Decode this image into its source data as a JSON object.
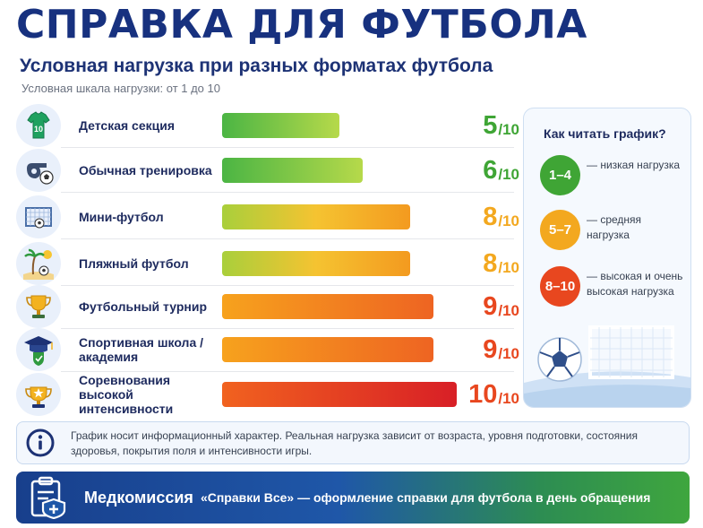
{
  "header": {
    "title": "СПРАВКА ДЛЯ ФУТБОЛА",
    "subtitle": "Условная нагрузка при разных форматах футбола",
    "scale_note": "Условная шкала нагрузки: от 1 до 10"
  },
  "chart_data": {
    "type": "bar",
    "orientation": "horizontal",
    "categories": [
      "Детская секция",
      "Обычная тренировка",
      "Мини-футбол",
      "Пляжный футбол",
      "Футбольный турнир",
      "Спортивная школа / академия",
      "Соревнования высокой интенсивности"
    ],
    "values": [
      5,
      6,
      8,
      8,
      9,
      9,
      10
    ],
    "score_labels": [
      "5",
      "6",
      "8",
      "8",
      "9",
      "9",
      "10"
    ],
    "score_suffix": "/10",
    "xlim": [
      0,
      10
    ],
    "row_icons": [
      "jersey-icon",
      "whistle-icon",
      "goal-icon",
      "beach-icon",
      "trophy-icon",
      "graduation-cap-icon",
      "cup-star-icon"
    ]
  },
  "legend": {
    "title": "Как читать график?",
    "items": [
      {
        "range": "1–4",
        "text": "— низкая нагрузка",
        "color": "#3fa535"
      },
      {
        "range": "5–7",
        "text": "— средняя нагрузка",
        "color": "#f3a81f"
      },
      {
        "range": "8–10",
        "text": "— высокая и очень высокая нагрузка",
        "color": "#e8471f"
      }
    ]
  },
  "info": {
    "text": "График носит информационный характер. Реальная нагрузка зависит от возраста, уровня подготовки, состояния здоровья, покрытия поля и интенсивности игры."
  },
  "footer": {
    "brand": "Медкомиссия",
    "text": "«Справки Все» — оформление справки для футбола в день обращения"
  },
  "colors": {
    "title": "#17317f",
    "green": "#3fa535",
    "yellow": "#f3a81f",
    "red": "#e8471f"
  }
}
